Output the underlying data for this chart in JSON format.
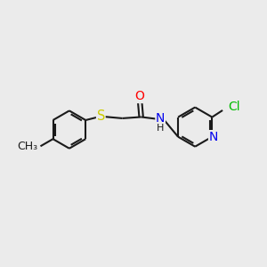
{
  "bg_color": "#ebebeb",
  "bond_color": "#1a1a1a",
  "bond_width": 1.5,
  "atom_colors": {
    "S": "#cccc00",
    "O": "#ff0000",
    "N": "#0000ee",
    "Cl": "#00bb00",
    "C": "#1a1a1a",
    "H": "#1a1a1a"
  },
  "font_size": 9.5,
  "fig_size": [
    3.0,
    3.0
  ],
  "dpi": 100
}
